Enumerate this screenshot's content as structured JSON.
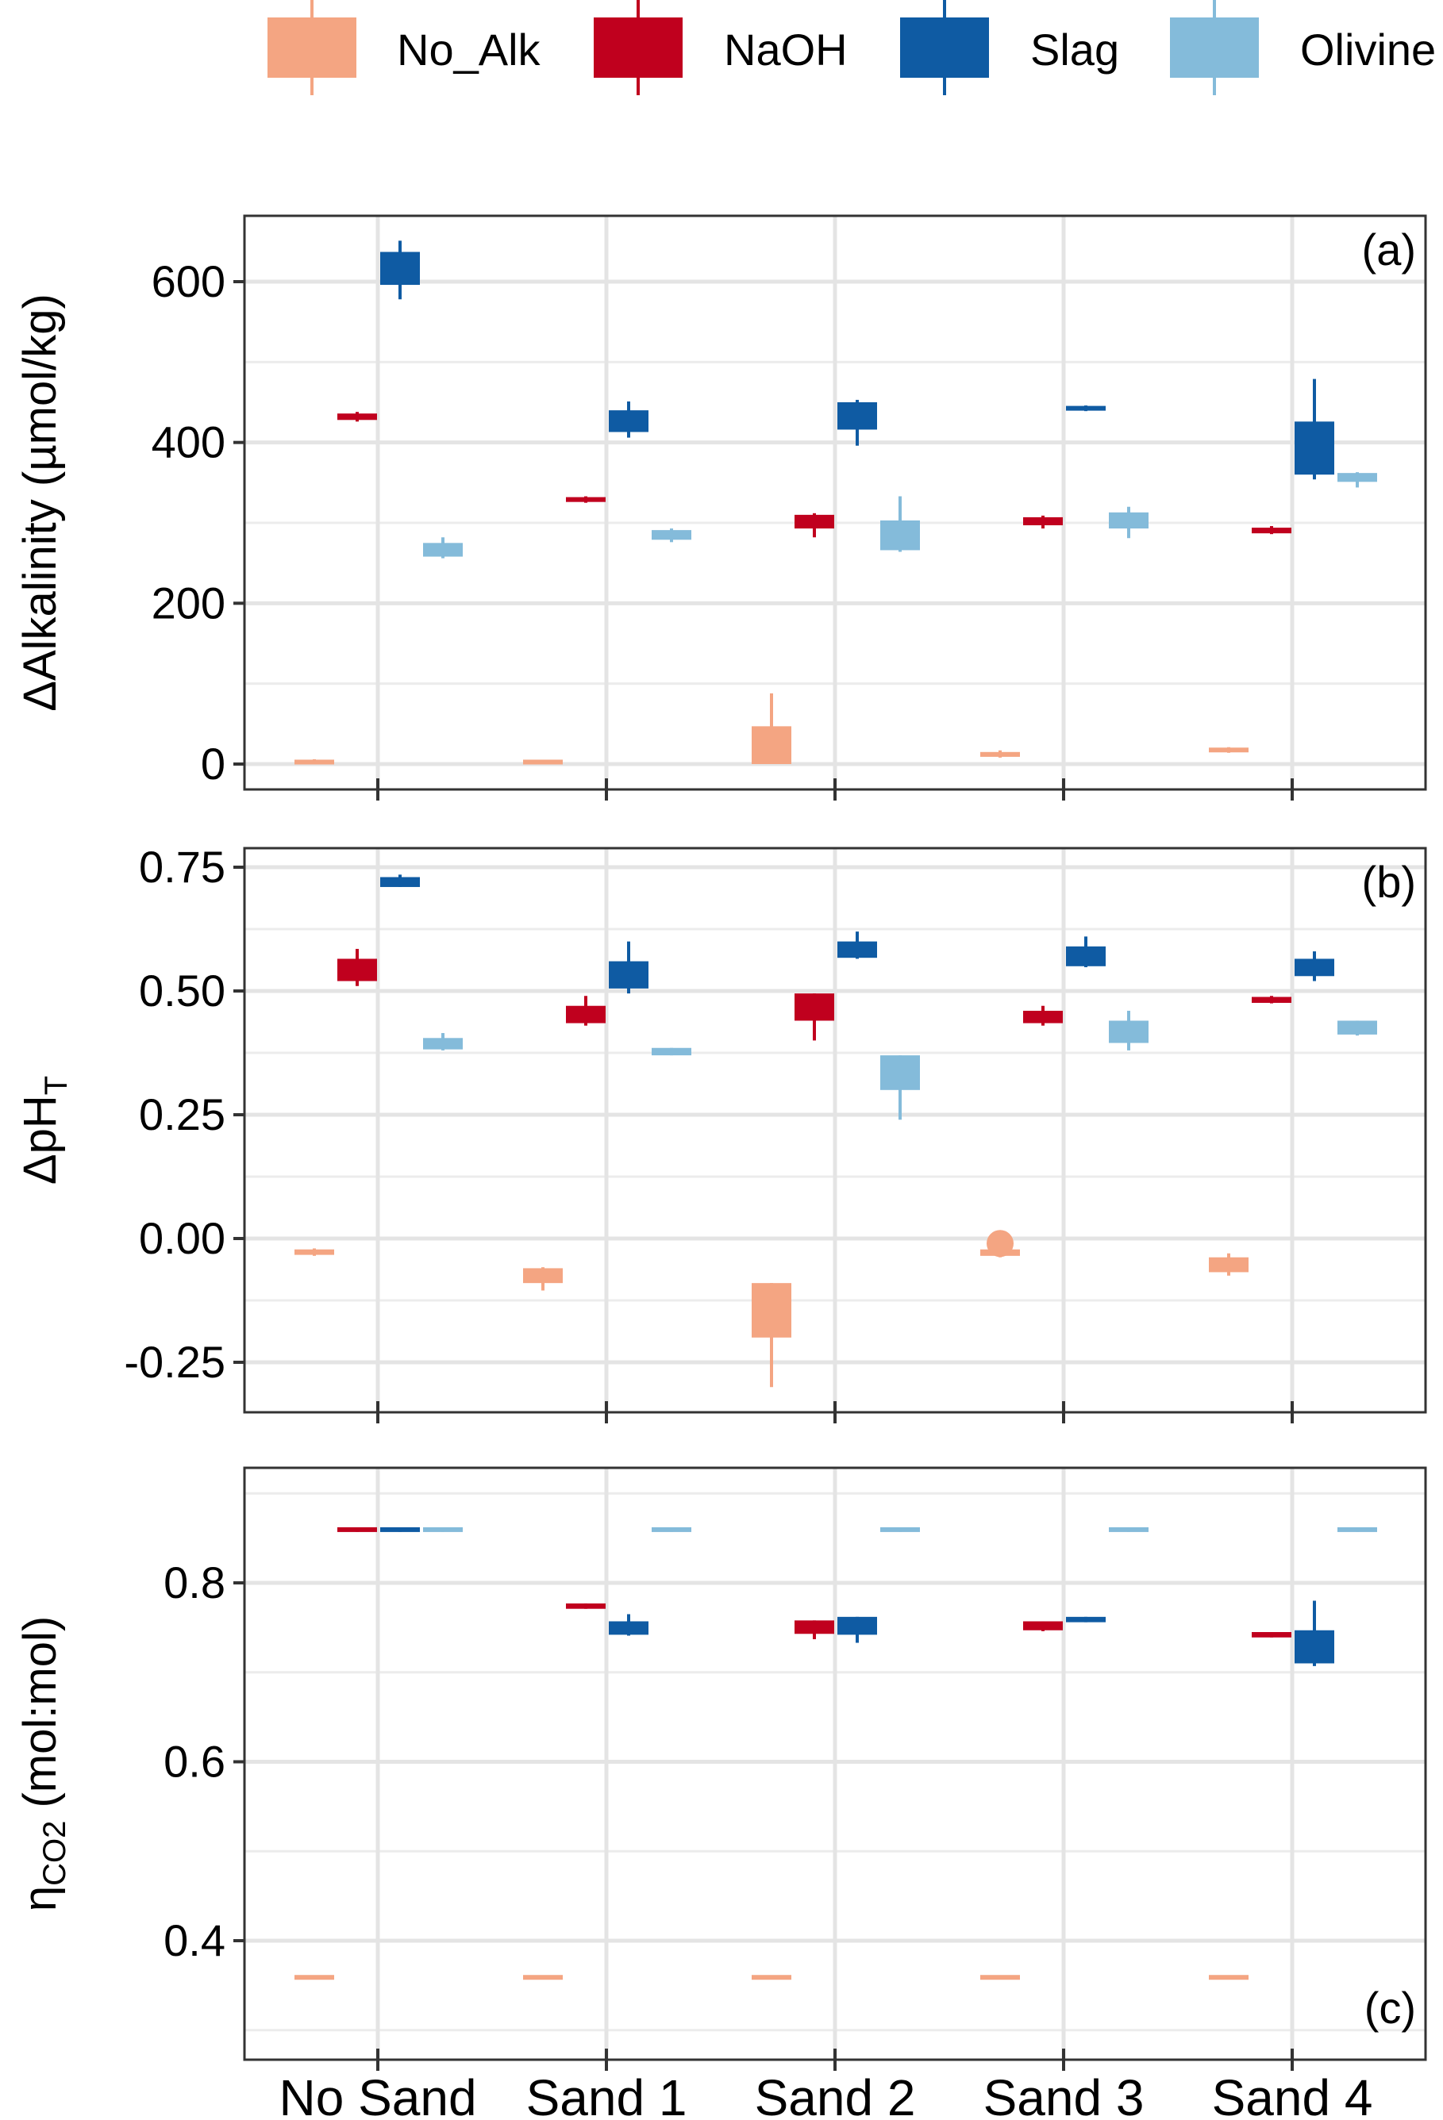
{
  "legend": [
    {
      "name": "No_Alk",
      "color": "#F4A582"
    },
    {
      "name": "NaOH",
      "color": "#C0001E"
    },
    {
      "name": "Slag",
      "color": "#0F5BA3"
    },
    {
      "name": "Olivine",
      "color": "#84BBDA"
    }
  ],
  "chart_data": [
    {
      "type": "box",
      "panel": "(a)",
      "ylabel": "ΔAlkalinity (µmol/kg)",
      "categories": [
        "No Sand",
        "Sand 1",
        "Sand 2",
        "Sand 3",
        "Sand 4"
      ],
      "ylim": [
        -35,
        680
      ],
      "yticks": [
        0,
        200,
        400,
        600
      ],
      "grid": true,
      "series": [
        {
          "name": "No_Alk",
          "boxes": [
            {
              "min": 0,
              "q1": 0,
              "q3": 5,
              "max": 6
            },
            {
              "min": 0,
              "q1": 0,
              "q3": 5,
              "max": 5
            },
            {
              "min": 0,
              "q1": 0,
              "q3": 47,
              "max": 88
            },
            {
              "min": 8,
              "q1": 9,
              "q3": 15,
              "max": 17
            },
            {
              "min": 14,
              "q1": 15,
              "q3": 20,
              "max": 21
            }
          ]
        },
        {
          "name": "NaOH",
          "boxes": [
            {
              "min": 426,
              "q1": 428,
              "q3": 436,
              "max": 438
            },
            {
              "min": 325,
              "q1": 326,
              "q3": 332,
              "max": 333
            },
            {
              "min": 282,
              "q1": 293,
              "q3": 310,
              "max": 312
            },
            {
              "min": 293,
              "q1": 297,
              "q3": 307,
              "max": 309
            },
            {
              "min": 286,
              "q1": 287,
              "q3": 294,
              "max": 296
            }
          ]
        },
        {
          "name": "Slag",
          "boxes": [
            {
              "min": 578,
              "q1": 596,
              "q3": 637,
              "max": 651
            },
            {
              "min": 406,
              "q1": 413,
              "q3": 440,
              "max": 451
            },
            {
              "min": 396,
              "q1": 416,
              "q3": 450,
              "max": 453
            },
            {
              "min": 439,
              "q1": 440,
              "q3": 445,
              "max": 446
            },
            {
              "min": 354,
              "q1": 360,
              "q3": 426,
              "max": 479
            }
          ]
        },
        {
          "name": "Olivine",
          "boxes": [
            {
              "min": 256,
              "q1": 258,
              "q3": 275,
              "max": 282
            },
            {
              "min": 276,
              "q1": 279,
              "q3": 291,
              "max": 293
            },
            {
              "min": 264,
              "q1": 266,
              "q3": 303,
              "max": 333
            },
            {
              "min": 281,
              "q1": 293,
              "q3": 313,
              "max": 320
            },
            {
              "min": 344,
              "q1": 351,
              "q3": 362,
              "max": 363
            }
          ]
        }
      ]
    },
    {
      "type": "box",
      "panel": "(b)",
      "ylabel": "ΔpH_T",
      "categories": [
        "No Sand",
        "Sand 1",
        "Sand 2",
        "Sand 3",
        "Sand 4"
      ],
      "ylim": [
        -0.35,
        0.78
      ],
      "yticks": [
        -0.25,
        0.0,
        0.25,
        0.5,
        0.75
      ],
      "ytick_labels": [
        "-0.25",
        "0.00",
        "0.25",
        "0.50",
        "0.75"
      ],
      "grid": true,
      "series": [
        {
          "name": "No_Alk",
          "boxes": [
            {
              "min": -0.035,
              "q1": -0.033,
              "q3": -0.022,
              "max": -0.02
            },
            {
              "min": -0.105,
              "q1": -0.09,
              "q3": -0.06,
              "max": -0.058
            },
            {
              "min": -0.3,
              "q1": -0.2,
              "q3": -0.09,
              "max": -0.09
            },
            {
              "min": -0.038,
              "q1": -0.035,
              "q3": -0.022,
              "max": -0.005,
              "outliers": [
                -0.01
              ]
            },
            {
              "min": -0.075,
              "q1": -0.068,
              "q3": -0.038,
              "max": -0.03
            }
          ]
        },
        {
          "name": "NaOH",
          "boxes": [
            {
              "min": 0.51,
              "q1": 0.52,
              "q3": 0.565,
              "max": 0.585
            },
            {
              "min": 0.43,
              "q1": 0.435,
              "q3": 0.47,
              "max": 0.49
            },
            {
              "min": 0.4,
              "q1": 0.44,
              "q3": 0.495,
              "max": 0.495
            },
            {
              "min": 0.43,
              "q1": 0.435,
              "q3": 0.46,
              "max": 0.47
            },
            {
              "min": 0.475,
              "q1": 0.476,
              "q3": 0.488,
              "max": 0.49
            }
          ]
        },
        {
          "name": "Slag",
          "boxes": [
            {
              "min": 0.71,
              "q1": 0.71,
              "q3": 0.73,
              "max": 0.735
            },
            {
              "min": 0.495,
              "q1": 0.505,
              "q3": 0.56,
              "max": 0.6
            },
            {
              "min": 0.565,
              "q1": 0.567,
              "q3": 0.6,
              "max": 0.62
            },
            {
              "min": 0.548,
              "q1": 0.55,
              "q3": 0.59,
              "max": 0.61
            },
            {
              "min": 0.52,
              "q1": 0.53,
              "q3": 0.565,
              "max": 0.58
            }
          ]
        },
        {
          "name": "Olivine",
          "boxes": [
            {
              "min": 0.38,
              "q1": 0.382,
              "q3": 0.405,
              "max": 0.415
            },
            {
              "min": 0.37,
              "q1": 0.37,
              "q3": 0.385,
              "max": 0.385
            },
            {
              "min": 0.24,
              "q1": 0.3,
              "q3": 0.37,
              "max": 0.37
            },
            {
              "min": 0.38,
              "q1": 0.395,
              "q3": 0.44,
              "max": 0.46
            },
            {
              "min": 0.41,
              "q1": 0.412,
              "q3": 0.44,
              "max": 0.44
            }
          ]
        }
      ]
    },
    {
      "type": "box",
      "panel": "(c)",
      "ylabel": "ηCO2 (mol:mol)",
      "categories": [
        "No Sand",
        "Sand 1",
        "Sand 2",
        "Sand 3",
        "Sand 4"
      ],
      "ylim": [
        0.29,
        0.92
      ],
      "yticks": [
        0.4,
        0.6,
        0.8
      ],
      "ytick_labels": [
        "0.4",
        "0.6",
        "0.8"
      ],
      "grid": true,
      "series": [
        {
          "name": "No_Alk",
          "boxes": [
            {
              "min": 0.357,
              "q1": 0.357,
              "q3": 0.361,
              "max": 0.361
            },
            {
              "min": 0.357,
              "q1": 0.357,
              "q3": 0.361,
              "max": 0.361
            },
            {
              "min": 0.357,
              "q1": 0.357,
              "q3": 0.361,
              "max": 0.361
            },
            {
              "min": 0.357,
              "q1": 0.357,
              "q3": 0.361,
              "max": 0.361
            },
            {
              "min": 0.357,
              "q1": 0.357,
              "q3": 0.361,
              "max": 0.361
            }
          ]
        },
        {
          "name": "NaOH",
          "boxes": [
            {
              "min": 0.857,
              "q1": 0.857,
              "q3": 0.862,
              "max": 0.862
            },
            {
              "min": 0.771,
              "q1": 0.771,
              "q3": 0.777,
              "max": 0.777
            },
            {
              "min": 0.737,
              "q1": 0.743,
              "q3": 0.758,
              "max": 0.758
            },
            {
              "min": 0.746,
              "q1": 0.747,
              "q3": 0.757,
              "max": 0.757
            },
            {
              "min": 0.739,
              "q1": 0.739,
              "q3": 0.745,
              "max": 0.745
            }
          ]
        },
        {
          "name": "Slag",
          "boxes": [
            {
              "min": 0.857,
              "q1": 0.857,
              "q3": 0.862,
              "max": 0.862
            },
            {
              "min": 0.741,
              "q1": 0.742,
              "q3": 0.757,
              "max": 0.765
            },
            {
              "min": 0.733,
              "q1": 0.742,
              "q3": 0.762,
              "max": 0.762
            },
            {
              "min": 0.756,
              "q1": 0.756,
              "q3": 0.762,
              "max": 0.762
            },
            {
              "min": 0.707,
              "q1": 0.71,
              "q3": 0.747,
              "max": 0.78
            }
          ]
        },
        {
          "name": "Olivine",
          "boxes": [
            {
              "min": 0.857,
              "q1": 0.857,
              "q3": 0.862,
              "max": 0.862
            },
            {
              "min": 0.857,
              "q1": 0.857,
              "q3": 0.862,
              "max": 0.862
            },
            {
              "min": 0.857,
              "q1": 0.857,
              "q3": 0.862,
              "max": 0.862
            },
            {
              "min": 0.857,
              "q1": 0.857,
              "q3": 0.862,
              "max": 0.862
            },
            {
              "min": 0.857,
              "q1": 0.857,
              "q3": 0.862,
              "max": 0.862
            }
          ]
        }
      ]
    }
  ]
}
